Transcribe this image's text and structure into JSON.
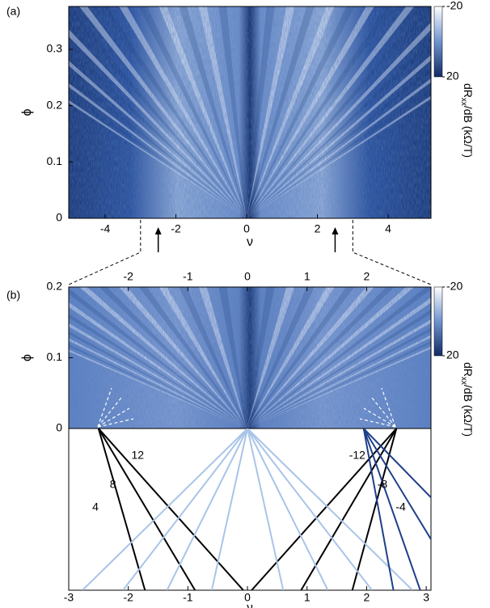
{
  "chart_data": [
    {
      "type": "heatmap",
      "panel_label": "(a)",
      "xlabel": "ν",
      "ylabel": "ϕ",
      "xlim": [
        -5.03,
        5.21
      ],
      "ylim": [
        0,
        0.376
      ],
      "xticks": [
        -4,
        -2,
        0,
        2,
        4
      ],
      "yticks": [
        0,
        0.1,
        0.2,
        0.3
      ],
      "colorbar": {
        "clim": [
          -20,
          20
        ],
        "ticks": [
          -20,
          20
        ],
        "label": {
          "main": "dR",
          "sub": "xx",
          "rest": "/dB (kΩ/T)"
        }
      },
      "arrows_at": [
        -2.5,
        2.5
      ],
      "zoom_range": [
        -3,
        3
      ]
    },
    {
      "type": "heatmap",
      "panel_label": "(b)",
      "ylabel": "ϕ",
      "xlim": [
        -3,
        3.08
      ],
      "ylim": [
        0,
        0.2
      ],
      "xticks": [
        -2,
        -1,
        0,
        1,
        2
      ],
      "yticks": [
        0,
        0.1,
        0.2
      ],
      "colorbar": {
        "clim": [
          -20,
          20
        ],
        "ticks": [
          -20,
          20
        ],
        "label": {
          "main": "dR",
          "sub": "xx",
          "rest": "/dB (kΩ/T)"
        }
      }
    },
    {
      "type": "fan",
      "xlabel": "ν",
      "xlim": [
        -3,
        3.08
      ],
      "xticks": [
        -3,
        -2,
        -1,
        0,
        1,
        2,
        3
      ],
      "lines": [
        {
          "color": "#000000",
          "from": -2.5,
          "to": -1.72,
          "label": 4
        },
        {
          "color": "#000000",
          "from": -2.5,
          "to": -0.88,
          "label": 8
        },
        {
          "color": "#000000",
          "from": -2.5,
          "to": -0.07,
          "label": 12
        },
        {
          "color": "#000000",
          "from": 2.5,
          "to": 0.07,
          "label": -12
        },
        {
          "color": "#000000",
          "from": 2.5,
          "to": 0.9,
          "label": -8
        },
        {
          "color": "#000000",
          "from": 2.5,
          "to": 1.76,
          "label": -4
        },
        {
          "color": "#a9c4e8",
          "from": 0,
          "to": -2.77
        },
        {
          "color": "#a9c4e8",
          "from": 0,
          "to": -2.09
        },
        {
          "color": "#a9c4e8",
          "from": 0,
          "to": -1.35
        },
        {
          "color": "#a9c4e8",
          "from": 0,
          "to": -0.6
        },
        {
          "color": "#a9c4e8",
          "from": 0,
          "to": 0.6
        },
        {
          "color": "#a9c4e8",
          "from": 0,
          "to": 1.35
        },
        {
          "color": "#a9c4e8",
          "from": 0,
          "to": 2.09
        },
        {
          "color": "#a9c4e8",
          "from": 0,
          "to": 2.77
        },
        {
          "color": "#1f3f8a",
          "from": 1.95,
          "to": 2.45
        },
        {
          "color": "#1f3f8a",
          "from": 1.95,
          "to": 2.9
        },
        {
          "color": "#1f3f8a",
          "from": 1.95,
          "to": 3.6
        },
        {
          "color": "#1f3f8a",
          "from": 1.95,
          "to": 4.6
        }
      ]
    }
  ]
}
